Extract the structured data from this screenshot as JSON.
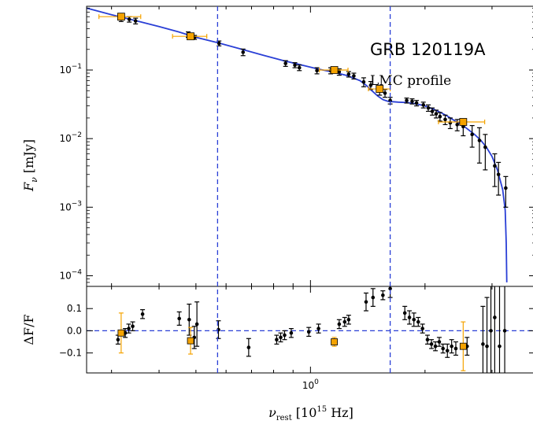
{
  "chart_data": [
    {
      "panel": "sed",
      "type": "scatter",
      "title": "GRB 120119A",
      "subtitle": "LMC profile",
      "xlabel": "ν_rest [10^15 Hz]",
      "ylabel": "F_ν [mJy]",
      "xscale": "log",
      "yscale": "log",
      "xlim": [
        0.258,
        3.9
      ],
      "ylim": [
        7e-05,
        0.85
      ],
      "x_tick_labels": [
        "10^0"
      ],
      "y_tick_labels": [
        "10^-4",
        "10^-3",
        "10^-2",
        "10^-1"
      ],
      "vlines": [
        0.57,
        1.62
      ],
      "colors": {
        "model": "#2a3fd6",
        "black_points": "#000000",
        "orange_points": "#f5a300",
        "vlines": "#2a3fd6"
      },
      "series": [
        {
          "points": [
            {
              "x": 0.318,
              "y": 0.57,
              "err": 0.06
            },
            {
              "x": 0.334,
              "y": 0.55,
              "err": 0.05
            },
            {
              "x": 0.347,
              "y": 0.52,
              "err": 0.05
            },
            {
              "x": 0.477,
              "y": 0.33,
              "err": 0.03
            },
            {
              "x": 0.496,
              "y": 0.3,
              "err": 0.02
            },
            {
              "x": 0.575,
              "y": 0.245,
              "err": 0.02
            },
            {
              "x": 0.665,
              "y": 0.182,
              "err": 0.02
            },
            {
              "x": 0.86,
              "y": 0.125,
              "err": 0.012
            },
            {
              "x": 0.91,
              "y": 0.118,
              "err": 0.01
            },
            {
              "x": 0.935,
              "y": 0.108,
              "err": 0.01
            },
            {
              "x": 1.04,
              "y": 0.098,
              "err": 0.01
            },
            {
              "x": 1.13,
              "y": 0.098,
              "err": 0.01
            },
            {
              "x": 1.19,
              "y": 0.094,
              "err": 0.01
            },
            {
              "x": 1.26,
              "y": 0.087,
              "err": 0.008
            },
            {
              "x": 1.3,
              "y": 0.082,
              "err": 0.008
            },
            {
              "x": 1.38,
              "y": 0.067,
              "err": 0.01
            },
            {
              "x": 1.44,
              "y": 0.06,
              "err": 0.008
            },
            {
              "x": 1.52,
              "y": 0.05,
              "err": 0.007
            },
            {
              "x": 1.57,
              "y": 0.046,
              "err": 0.006
            },
            {
              "x": 1.62,
              "y": 0.036,
              "err": 0.004
            },
            {
              "x": 1.79,
              "y": 0.036,
              "err": 0.003
            },
            {
              "x": 1.85,
              "y": 0.035,
              "err": 0.003
            },
            {
              "x": 1.9,
              "y": 0.033,
              "err": 0.003
            },
            {
              "x": 1.98,
              "y": 0.031,
              "err": 0.003
            },
            {
              "x": 2.04,
              "y": 0.028,
              "err": 0.003
            },
            {
              "x": 2.09,
              "y": 0.025,
              "err": 0.003
            },
            {
              "x": 2.14,
              "y": 0.023,
              "err": 0.003
            },
            {
              "x": 2.19,
              "y": 0.021,
              "err": 0.003
            },
            {
              "x": 2.26,
              "y": 0.019,
              "err": 0.003
            },
            {
              "x": 2.33,
              "y": 0.017,
              "err": 0.003
            },
            {
              "x": 2.43,
              "y": 0.016,
              "err": 0.003
            },
            {
              "x": 2.52,
              "y": 0.015,
              "err": 0.004
            },
            {
              "x": 2.66,
              "y": 0.0115,
              "err": 0.004
            },
            {
              "x": 2.78,
              "y": 0.0094,
              "err": 0.005
            },
            {
              "x": 2.88,
              "y": 0.0075,
              "err": 0.004
            },
            {
              "x": 3.05,
              "y": 0.004,
              "err": 0.002
            },
            {
              "x": 3.12,
              "y": 0.003,
              "err": 0.0015
            },
            {
              "x": 3.26,
              "y": 0.0019,
              "err": 0.0009
            }
          ]
        },
        {
          "points": [
            {
              "x": 0.318,
              "y": 0.6,
              "xerr": 0.04
            },
            {
              "x": 0.484,
              "y": 0.31,
              "xerr": 0.05
            },
            {
              "x": 1.155,
              "y": 0.1,
              "xerr": 0.1
            },
            {
              "x": 1.52,
              "y": 0.053,
              "xerr": 0.1
            },
            {
              "x": 2.52,
              "y": 0.0175,
              "xerr": 0.35
            }
          ]
        }
      ],
      "model_curve": [
        [
          0.258,
          0.8
        ],
        [
          0.3,
          0.64
        ],
        [
          0.35,
          0.52
        ],
        [
          0.4,
          0.43
        ],
        [
          0.45,
          0.36
        ],
        [
          0.5,
          0.3
        ],
        [
          0.57,
          0.25
        ],
        [
          0.65,
          0.205
        ],
        [
          0.75,
          0.165
        ],
        [
          0.85,
          0.137
        ],
        [
          0.95,
          0.118
        ],
        [
          1.05,
          0.103
        ],
        [
          1.15,
          0.093
        ],
        [
          1.25,
          0.083
        ],
        [
          1.35,
          0.07
        ],
        [
          1.4,
          0.06
        ],
        [
          1.45,
          0.05
        ],
        [
          1.5,
          0.042
        ],
        [
          1.55,
          0.037
        ],
        [
          1.6,
          0.035
        ],
        [
          1.7,
          0.034
        ],
        [
          1.8,
          0.0335
        ],
        [
          1.9,
          0.032
        ],
        [
          2.0,
          0.03
        ],
        [
          2.1,
          0.027
        ],
        [
          2.2,
          0.024
        ],
        [
          2.3,
          0.021
        ],
        [
          2.4,
          0.018
        ],
        [
          2.5,
          0.016
        ],
        [
          2.6,
          0.0135
        ],
        [
          2.7,
          0.0115
        ],
        [
          2.8,
          0.0095
        ],
        [
          2.9,
          0.0075
        ],
        [
          3.0,
          0.0055
        ],
        [
          3.1,
          0.0035
        ],
        [
          3.2,
          0.0018
        ],
        [
          3.25,
          0.0009
        ],
        [
          3.27,
          0.0003
        ],
        [
          3.28,
          8e-05
        ]
      ]
    },
    {
      "panel": "residuals",
      "type": "scatter",
      "xlabel": "ν_rest [10^15 Hz]",
      "ylabel": "ΔF/F",
      "xscale": "log",
      "xlim": [
        0.258,
        3.9
      ],
      "ylim": [
        -0.19,
        0.2
      ],
      "y_ticks": [
        0.1,
        0.0,
        -0.1
      ],
      "y_tick_labels": [
        "0.1",
        "0.0",
        "−0.1"
      ],
      "hline": 0.0,
      "series": [
        {
          "points": [
            {
              "x": 0.312,
              "y": -0.04,
              "err": 0.02
            },
            {
              "x": 0.326,
              "y": -0.01,
              "err": 0.02
            },
            {
              "x": 0.333,
              "y": 0.01,
              "err": 0.02
            },
            {
              "x": 0.341,
              "y": 0.02,
              "err": 0.02
            },
            {
              "x": 0.362,
              "y": 0.075,
              "err": 0.02
            },
            {
              "x": 0.452,
              "y": 0.055,
              "err": 0.03
            },
            {
              "x": 0.48,
              "y": 0.05,
              "err": 0.07
            },
            {
              "x": 0.495,
              "y": -0.03,
              "err": 0.05
            },
            {
              "x": 0.503,
              "y": 0.03,
              "err": 0.1
            },
            {
              "x": 0.573,
              "y": 0.005,
              "err": 0.04
            },
            {
              "x": 0.688,
              "y": -0.075,
              "err": 0.04
            },
            {
              "x": 0.815,
              "y": -0.04,
              "err": 0.02
            },
            {
              "x": 0.835,
              "y": -0.03,
              "err": 0.02
            },
            {
              "x": 0.855,
              "y": -0.02,
              "err": 0.02
            },
            {
              "x": 0.89,
              "y": -0.01,
              "err": 0.02
            },
            {
              "x": 0.99,
              "y": -0.005,
              "err": 0.02
            },
            {
              "x": 1.05,
              "y": 0.01,
              "err": 0.02
            },
            {
              "x": 1.19,
              "y": 0.03,
              "err": 0.02
            },
            {
              "x": 1.23,
              "y": 0.04,
              "err": 0.02
            },
            {
              "x": 1.26,
              "y": 0.05,
              "err": 0.02
            },
            {
              "x": 1.4,
              "y": 0.13,
              "err": 0.04
            },
            {
              "x": 1.46,
              "y": 0.15,
              "err": 0.04
            },
            {
              "x": 1.55,
              "y": 0.16,
              "err": 0.02
            },
            {
              "x": 1.62,
              "y": 0.19,
              "err": 0.04
            },
            {
              "x": 1.77,
              "y": 0.08,
              "err": 0.03
            },
            {
              "x": 1.82,
              "y": 0.06,
              "err": 0.03
            },
            {
              "x": 1.87,
              "y": 0.05,
              "err": 0.03
            },
            {
              "x": 1.92,
              "y": 0.04,
              "err": 0.02
            },
            {
              "x": 1.97,
              "y": 0.01,
              "err": 0.02
            },
            {
              "x": 2.03,
              "y": -0.04,
              "err": 0.02
            },
            {
              "x": 2.08,
              "y": -0.06,
              "err": 0.02
            },
            {
              "x": 2.13,
              "y": -0.07,
              "err": 0.02
            },
            {
              "x": 2.18,
              "y": -0.05,
              "err": 0.02
            },
            {
              "x": 2.23,
              "y": -0.08,
              "err": 0.02
            },
            {
              "x": 2.29,
              "y": -0.09,
              "err": 0.03
            },
            {
              "x": 2.35,
              "y": -0.07,
              "err": 0.03
            },
            {
              "x": 2.41,
              "y": -0.08,
              "err": 0.03
            },
            {
              "x": 2.58,
              "y": -0.07,
              "err": 0.04
            },
            {
              "x": 2.84,
              "y": -0.06,
              "err": 0.17
            },
            {
              "x": 2.91,
              "y": -0.07,
              "err": 0.22
            },
            {
              "x": 2.98,
              "y": 0.0,
              "err": 0.3
            },
            {
              "x": 3.05,
              "y": 0.06,
              "err": 0.35
            },
            {
              "x": 3.14,
              "y": -0.07,
              "err": 0.35
            },
            {
              "x": 3.24,
              "y": 0.0,
              "err": 0.4
            }
          ]
        },
        {
          "points": [
            {
              "x": 0.318,
              "y": -0.01,
              "yerr": 0.09
            },
            {
              "x": 0.484,
              "y": -0.045,
              "yerr": 0.06
            },
            {
              "x": 1.155,
              "y": -0.05,
              "yerr": 0.02
            },
            {
              "x": 2.52,
              "y": -0.07,
              "yerr": 0.11
            }
          ]
        }
      ]
    }
  ]
}
